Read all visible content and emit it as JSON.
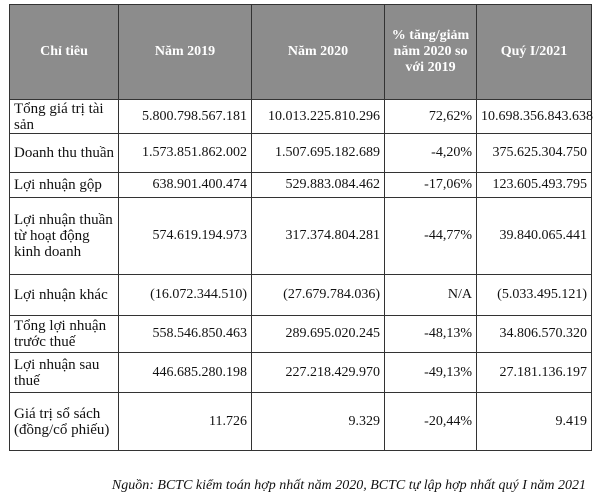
{
  "table": {
    "headers": [
      "Chỉ tiêu",
      "Năm 2019",
      "Năm 2020",
      "% tăng/giảm năm 2020 so với 2019",
      "Quý I/2021"
    ],
    "rows": [
      {
        "label": "Tổng giá trị tài sản",
        "y2019": "5.800.798.567.181",
        "y2020": "10.013.225.810.296",
        "change": "72,62%",
        "q1_2021": "10.698.356.843.638"
      },
      {
        "label": "Doanh thu thuần",
        "y2019": "1.573.851.862.002",
        "y2020": "1.507.695.182.689",
        "change": "-4,20%",
        "q1_2021": "375.625.304.750"
      },
      {
        "label": "Lợi nhuận gộp",
        "y2019": "638.901.400.474",
        "y2020": "529.883.084.462",
        "change": "-17,06%",
        "q1_2021": "123.605.493.795"
      },
      {
        "label": "Lợi nhuận thuần từ hoạt động kinh doanh",
        "y2019": "574.619.194.973",
        "y2020": "317.374.804.281",
        "change": "-44,77%",
        "q1_2021": "39.840.065.441"
      },
      {
        "label": "Lợi nhuận khác",
        "y2019": "(16.072.344.510)",
        "y2020": "(27.679.784.036)",
        "change": "N/A",
        "q1_2021": "(5.033.495.121)"
      },
      {
        "label": "Tổng lợi nhuận trước thuế",
        "y2019": "558.546.850.463",
        "y2020": "289.695.020.245",
        "change": "-48,13%",
        "q1_2021": "34.806.570.320"
      },
      {
        "label": "Lợi nhuận sau thuế",
        "y2019": "446.685.280.198",
        "y2020": "227.218.429.970",
        "change": "-49,13%",
        "q1_2021": "27.181.136.197"
      },
      {
        "label": "Giá trị sổ sách (đồng/cổ phiếu)",
        "y2019": "11.726",
        "y2020": "9.329",
        "change": "-20,44%",
        "q1_2021": "9.419"
      }
    ]
  },
  "source": "Nguồn: BCTC kiểm toán hợp nhất năm 2020, BCTC tự lập hợp nhất quý I năm 2021"
}
